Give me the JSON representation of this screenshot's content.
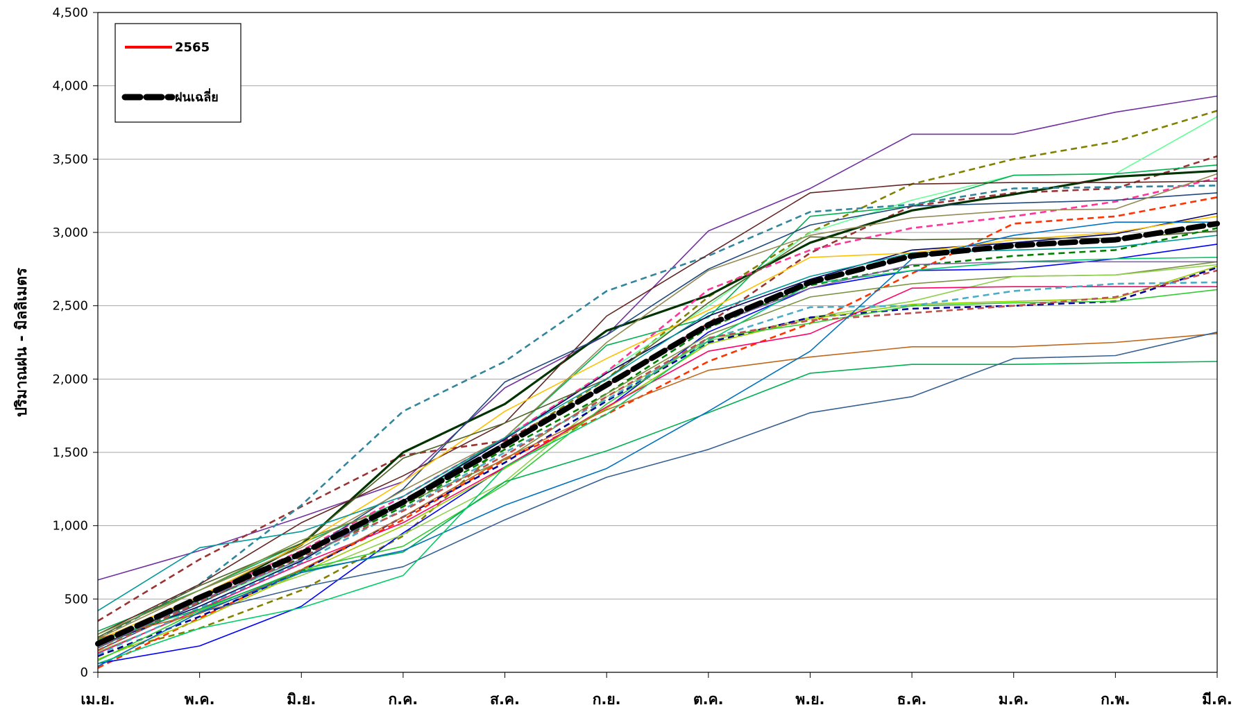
{
  "chart_data": {
    "type": "line",
    "title": "",
    "xlabel": "",
    "ylabel": "ปริมาณฝน  -  มิลลิเมตร",
    "categories": [
      "เม.ย.",
      "พ.ค.",
      "มิ.ย.",
      "ก.ค.",
      "ส.ค.",
      "ก.ย.",
      "ต.ค.",
      "พ.ย.",
      "ธ.ค.",
      "ม.ค.",
      "ก.พ.",
      "มี.ค."
    ],
    "ylim": [
      0,
      4500
    ],
    "yticks": [
      0,
      500,
      1000,
      1500,
      2000,
      2500,
      3000,
      3500,
      4000,
      4500
    ],
    "ytick_labels": [
      "0",
      "500",
      "1,000",
      "1,500",
      "2,000",
      "2,500",
      "3,000",
      "3,500",
      "4,000",
      "4,500"
    ],
    "grid": true,
    "legend": {
      "placement": "top-left",
      "entries": [
        {
          "label": "2565",
          "color": "#ff0000",
          "style": "solid"
        },
        {
          "label": "ฝนเฉลี่ย",
          "color": "#000000",
          "style": "dashed"
        }
      ]
    },
    "highlight_series": [
      {
        "name": "ฝนเฉลี่ย",
        "color": "#000000",
        "style": "dashed",
        "values": [
          195,
          510,
          810,
          1160,
          1550,
          1960,
          2370,
          2660,
          2840,
          2910,
          2950,
          3060
        ]
      }
    ],
    "series": [
      {
        "color": "#7030a0",
        "style": "solid",
        "values": [
          630,
          830,
          1060,
          1300,
          1940,
          2300,
          3010,
          3300,
          3670,
          3670,
          3820,
          3930
        ]
      },
      {
        "color": "#808000",
        "style": "dashed",
        "values": [
          120,
          300,
          560,
          930,
          1560,
          2000,
          2560,
          3000,
          3330,
          3500,
          3620,
          3830
        ]
      },
      {
        "color": "#66ff99",
        "style": "solid",
        "values": [
          200,
          480,
          760,
          1150,
          1600,
          2050,
          2500,
          3000,
          3220,
          3390,
          3400,
          3790
        ]
      },
      {
        "color": "#993333",
        "style": "dashed",
        "values": [
          350,
          770,
          1130,
          1480,
          1580,
          1960,
          2380,
          2860,
          3180,
          3270,
          3300,
          3520
        ]
      },
      {
        "color": "#00b050",
        "style": "solid",
        "values": [
          280,
          560,
          880,
          1170,
          1600,
          2230,
          2420,
          3110,
          3180,
          3390,
          3400,
          3460
        ]
      },
      {
        "color": "#003300",
        "style": "solid",
        "values": [
          170,
          500,
          870,
          1500,
          1830,
          2330,
          2570,
          2930,
          3150,
          3260,
          3380,
          3420
        ]
      },
      {
        "color": "#31859c",
        "style": "dashed",
        "values": [
          230,
          600,
          1140,
          1780,
          2120,
          2600,
          2840,
          3140,
          3190,
          3300,
          3310,
          3320
        ]
      },
      {
        "color": "#ff3399",
        "style": "dashed",
        "values": [
          190,
          520,
          830,
          1200,
          1600,
          2050,
          2610,
          2880,
          3030,
          3110,
          3210,
          3370
        ]
      },
      {
        "color": "#632523",
        "style": "solid",
        "values": [
          260,
          600,
          1020,
          1340,
          1700,
          2430,
          2850,
          3270,
          3330,
          3340,
          3340,
          3350
        ]
      },
      {
        "color": "#1f497d",
        "style": "solid",
        "values": [
          150,
          470,
          800,
          1250,
          1980,
          2300,
          2750,
          3050,
          3180,
          3200,
          3220,
          3270
        ]
      },
      {
        "color": "#ff3300",
        "style": "dashed",
        "values": [
          30,
          370,
          700,
          1040,
          1450,
          1760,
          2120,
          2380,
          2720,
          3060,
          3110,
          3240
        ]
      },
      {
        "color": "#000066",
        "style": "solid",
        "values": [
          180,
          450,
          760,
          1170,
          1590,
          2040,
          2430,
          2680,
          2880,
          2930,
          2990,
          3130
        ]
      },
      {
        "color": "#ffc000",
        "style": "solid",
        "values": [
          220,
          520,
          870,
          1300,
          1780,
          2140,
          2470,
          2830,
          2860,
          2950,
          3000,
          3110
        ]
      },
      {
        "color": "#948a54",
        "style": "solid",
        "values": [
          230,
          560,
          850,
          1240,
          1600,
          2250,
          2740,
          2980,
          3100,
          3150,
          3160,
          3400
        ]
      },
      {
        "color": "#4f6228",
        "style": "solid",
        "values": [
          240,
          590,
          880,
          1460,
          1700,
          2000,
          2520,
          2970,
          2950,
          2960,
          2960,
          3010
        ]
      },
      {
        "color": "#008000",
        "style": "dashed",
        "values": [
          170,
          480,
          780,
          1130,
          1520,
          1900,
          2350,
          2640,
          2770,
          2840,
          2880,
          3030
        ]
      },
      {
        "color": "#0000ff",
        "style": "solid",
        "values": [
          60,
          180,
          450,
          950,
          1400,
          1800,
          2320,
          2620,
          2740,
          2750,
          2820,
          2920
        ]
      },
      {
        "color": "#76923c",
        "style": "solid",
        "values": [
          260,
          560,
          900,
          1150,
          1450,
          1900,
          2300,
          2560,
          2650,
          2700,
          2710,
          2800
        ]
      },
      {
        "color": "#92d050",
        "style": "solid",
        "values": [
          140,
          420,
          660,
          940,
          1300,
          1880,
          2260,
          2420,
          2530,
          2700,
          2710,
          2780
        ]
      },
      {
        "color": "#000099",
        "style": "dashed",
        "values": [
          110,
          380,
          690,
          1060,
          1430,
          1850,
          2250,
          2420,
          2480,
          2500,
          2530,
          2760
        ]
      },
      {
        "color": "#99cc00",
        "style": "solid",
        "values": [
          90,
          360,
          680,
          1000,
          1390,
          1800,
          2240,
          2410,
          2510,
          2530,
          2550,
          2770
        ]
      },
      {
        "color": "#ff0066",
        "style": "solid",
        "values": [
          130,
          430,
          740,
          1020,
          1400,
          1810,
          2190,
          2310,
          2620,
          2630,
          2630,
          2630
        ]
      },
      {
        "color": "#4bacc6",
        "style": "dashed",
        "values": [
          120,
          440,
          750,
          1110,
          1500,
          1860,
          2270,
          2490,
          2500,
          2600,
          2650,
          2660
        ]
      },
      {
        "color": "#33cc33",
        "style": "solid",
        "values": [
          80,
          420,
          700,
          860,
          1280,
          1830,
          2280,
          2380,
          2500,
          2520,
          2530,
          2610
        ]
      },
      {
        "color": "#c0504d",
        "style": "dashed",
        "values": [
          150,
          480,
          790,
          1100,
          1480,
          1880,
          2280,
          2400,
          2450,
          2500,
          2560,
          2740
        ]
      },
      {
        "color": "#c0661a",
        "style": "solid",
        "values": [
          230,
          400,
          700,
          1060,
          1460,
          1790,
          2060,
          2150,
          2220,
          2220,
          2250,
          2310
        ]
      },
      {
        "color": "#00b050",
        "style": "solid",
        "values": [
          220,
          430,
          690,
          820,
          1300,
          1510,
          1770,
          2040,
          2100,
          2100,
          2110,
          2120
        ]
      },
      {
        "color": "#366092",
        "style": "solid",
        "values": [
          40,
          410,
          580,
          720,
          1040,
          1330,
          1520,
          1770,
          1880,
          2140,
          2160,
          2320
        ]
      },
      {
        "color": "#0070c0",
        "style": "solid",
        "values": [
          40,
          410,
          680,
          830,
          1140,
          1390,
          1780,
          2190,
          2820,
          2980,
          3070,
          3070
        ]
      },
      {
        "color": "#00cc66",
        "style": "solid",
        "values": [
          60,
          300,
          440,
          660,
          1400,
          1760,
          2260,
          2650,
          2740,
          2800,
          2820,
          2830
        ]
      },
      {
        "color": "#009999",
        "style": "solid",
        "values": [
          420,
          850,
          960,
          1200,
          1600,
          2000,
          2450,
          2700,
          2860,
          2880,
          2900,
          2980
        ]
      },
      {
        "color": "#8064a2",
        "style": "solid",
        "values": [
          170,
          490,
          770,
          1150,
          1570,
          1950,
          2360,
          2620,
          2780,
          2800,
          2800,
          2800
        ]
      }
    ]
  }
}
